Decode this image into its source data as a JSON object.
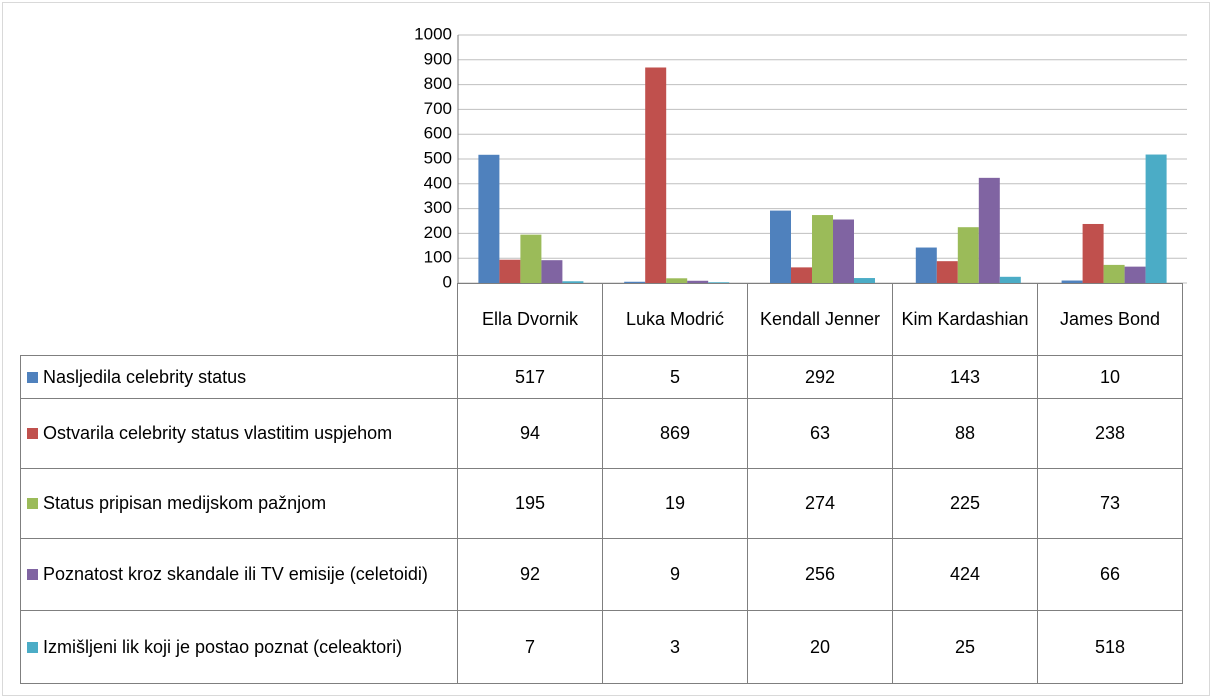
{
  "chart_data": {
    "type": "bar",
    "categories": [
      "Ella Dvornik",
      "Luka Modrić",
      "Kendall Jenner",
      "Kim Kardashian",
      "James Bond"
    ],
    "series": [
      {
        "name": "Nasljedila celebrity status",
        "color": "#4f81bd",
        "values": [
          517,
          5,
          292,
          143,
          10
        ]
      },
      {
        "name": "Ostvarila celebrity status vlastitim uspjehom",
        "color": "#c0504d",
        "values": [
          94,
          869,
          63,
          88,
          238
        ]
      },
      {
        "name": "Status pripisan medijskom pažnjom",
        "color": "#9bbb59",
        "values": [
          195,
          19,
          274,
          225,
          73
        ]
      },
      {
        "name": "Poznatost kroz skandale ili TV emisije (celetoidi)",
        "color": "#8064a2",
        "values": [
          92,
          9,
          256,
          424,
          66
        ]
      },
      {
        "name": "Izmišljeni lik koji je postao poznat (celeaktori)",
        "color": "#4bacc6",
        "values": [
          7,
          3,
          20,
          25,
          518
        ]
      }
    ],
    "ylim": [
      0,
      1000
    ],
    "yticks": [
      0,
      100,
      200,
      300,
      400,
      500,
      600,
      700,
      800,
      900,
      1000
    ],
    "grid": true
  }
}
